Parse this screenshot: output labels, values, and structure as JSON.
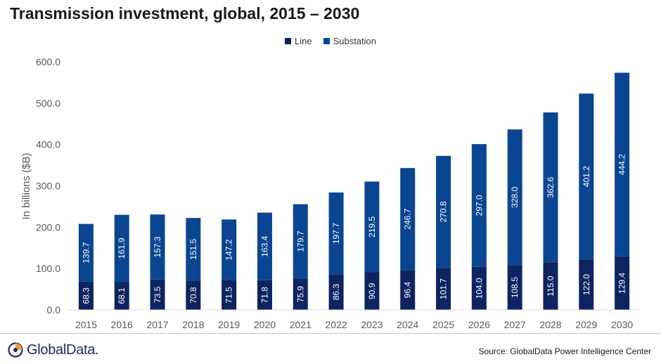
{
  "title": "Transmission investment, global, 2015 – 2030",
  "source": "Source: GlobalData Power Intelligence Center",
  "logo_text": "GlobalData.",
  "colors": {
    "line": "#0d2461",
    "substation": "#0a4592",
    "axis": "#d9d9d9",
    "tick_text": "#595959",
    "label_text": "#ffffff"
  },
  "chart_data": {
    "type": "bar",
    "stacked": true,
    "title": "Transmission investment, global, 2015 – 2030",
    "xlabel": "",
    "ylabel": "In billions  ($B)",
    "ylim": [
      0,
      600
    ],
    "yticks": [
      0,
      100,
      200,
      300,
      400,
      500,
      600
    ],
    "ytick_labels": [
      "0.0",
      "100.0",
      "200.0",
      "300.0",
      "400.0",
      "500.0",
      "600.0"
    ],
    "grid": false,
    "legend_position": "top-center",
    "categories": [
      "2015",
      "2016",
      "2017",
      "2018",
      "2019",
      "2020",
      "2021",
      "2022",
      "2023",
      "2024",
      "2025",
      "2026",
      "2027",
      "2028",
      "2029",
      "2030"
    ],
    "series": [
      {
        "name": "Line",
        "values": [
          68.3,
          68.1,
          73.5,
          70.8,
          71.5,
          71.8,
          75.9,
          86.3,
          90.9,
          96.4,
          101.7,
          104.0,
          108.5,
          115.0,
          122.0,
          129.4
        ],
        "labels": [
          "68.3",
          "68.1",
          "73.5",
          "70.8",
          "71.5",
          "71.8",
          "75.9",
          "86.3",
          "90.9",
          "96.4",
          "101.7",
          "104.0",
          "108.5",
          "115.0",
          "122.0",
          "129.4"
        ]
      },
      {
        "name": "Substation",
        "values": [
          139.7,
          161.9,
          157.3,
          151.5,
          147.2,
          163.4,
          179.7,
          197.7,
          219.5,
          246.7,
          270.8,
          297.0,
          328.0,
          362.6,
          401.2,
          444.2
        ],
        "labels": [
          "139.7",
          "161.9",
          "157.3",
          "151.5",
          "147.2",
          "163.4",
          "179.7",
          "197.7",
          "219.5",
          "246.7",
          "270.8",
          "297.0",
          "328.0",
          "362.6",
          "401.2",
          "444.2"
        ]
      }
    ]
  }
}
